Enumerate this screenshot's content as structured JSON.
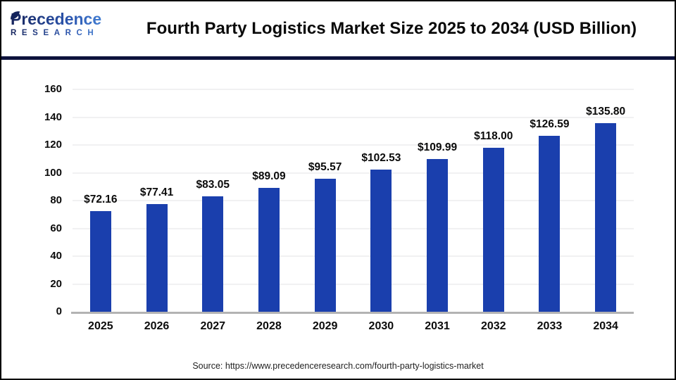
{
  "header": {
    "logo": {
      "line1": "Precedence",
      "line2": "RESEARCH"
    },
    "title": "Fourth Party Logistics Market Size 2025 to 2034 (USD Billion)"
  },
  "chart_data": {
    "type": "bar",
    "title": "Fourth Party Logistics Market Size 2025 to 2034 (USD Billion)",
    "categories": [
      "2025",
      "2026",
      "2027",
      "2028",
      "2029",
      "2030",
      "2031",
      "2032",
      "2033",
      "2034"
    ],
    "values": [
      72.16,
      77.41,
      83.05,
      89.09,
      95.57,
      102.53,
      109.99,
      118.0,
      126.59,
      135.8
    ],
    "bar_labels": [
      "$72.16",
      "$77.41",
      "$83.05",
      "$89.09",
      "$95.57",
      "$102.53",
      "$109.99",
      "$118.00",
      "$126.59",
      "$135.80"
    ],
    "unit": "USD Billion",
    "xlabel": "",
    "ylabel": "",
    "ylim": [
      0,
      160
    ],
    "yticks": [
      0,
      20,
      40,
      60,
      80,
      100,
      120,
      140,
      160
    ],
    "grid": true,
    "legend": false,
    "bar_color": "#1a3fad"
  },
  "footer": {
    "source": "Source: https://www.precedenceresearch.com/fourth-party-logistics-market"
  },
  "colors": {
    "bar": "#1a3fad",
    "header_divider": "#0d123c",
    "gridline": "#f1f1f2",
    "axis_line": "#b3b3b3",
    "logo_gradient_start": "#16245c",
    "logo_gradient_end": "#4b8fe2"
  }
}
